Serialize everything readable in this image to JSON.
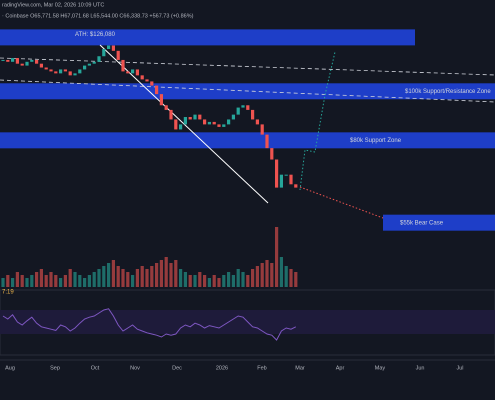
{
  "header": {
    "source": "radingView.com, Mar 02, 2026 10:09 UTC",
    "ohlc": "· Coinbase  O65,771.58 H67,071.68 L65,544.00 C66,338.73 +567.73 (+0.86%)"
  },
  "rsi_timer": "7:19",
  "chart_data": {
    "type": "candlestick",
    "log": true,
    "ylim": [
      52000,
      155000
    ],
    "annotations": [
      {
        "text": "ATH: $126,080",
        "value": 126080
      },
      {
        "text": "$100k Support/Resistance Zone",
        "value": 100000
      },
      {
        "text": "$80k Support Zone",
        "value": 80000
      },
      {
        "text": "$55k Bear Case",
        "value": 55000
      }
    ],
    "categories": [
      "Aug",
      "Sep",
      "Oct",
      "Nov",
      "Dec",
      "2026",
      "Feb",
      "Mar",
      "Apr",
      "May",
      "Jun",
      "Jul"
    ],
    "colors": {
      "up": "#26a69a",
      "down": "#ef5350"
    },
    "close": [
      118000,
      117000,
      119000,
      116000,
      115000,
      117000,
      118000,
      116000,
      114000,
      113000,
      112000,
      111000,
      113000,
      112000,
      110000,
      111000,
      113000,
      115000,
      116000,
      117000,
      120000,
      124000,
      126000,
      123000,
      118000,
      112000,
      111000,
      113000,
      110000,
      108000,
      107000,
      105000,
      101000,
      96000,
      94000,
      90000,
      86000,
      88000,
      91000,
      90000,
      92000,
      90000,
      88000,
      89000,
      88000,
      87000,
      88000,
      90000,
      92000,
      95000,
      96000,
      94000,
      90000,
      88000,
      84000,
      79000,
      75000,
      66000,
      70000,
      70000,
      67000,
      66000
    ],
    "volume": [
      3,
      4,
      3,
      5,
      4,
      3,
      4,
      5,
      6,
      4,
      5,
      4,
      3,
      4,
      6,
      5,
      4,
      3,
      4,
      5,
      6,
      7,
      8,
      9,
      7,
      6,
      5,
      4,
      6,
      7,
      6,
      7,
      8,
      9,
      10,
      8,
      9,
      6,
      5,
      4,
      4,
      5,
      4,
      3,
      4,
      3,
      4,
      5,
      4,
      6,
      5,
      4,
      6,
      7,
      8,
      9,
      8,
      20,
      10,
      7,
      6,
      5
    ],
    "rsi": [
      60,
      55,
      62,
      50,
      45,
      52,
      58,
      48,
      42,
      40,
      38,
      36,
      45,
      42,
      35,
      40,
      48,
      55,
      58,
      60,
      65,
      70,
      72,
      60,
      45,
      35,
      40,
      45,
      38,
      35,
      32,
      30,
      28,
      25,
      30,
      28,
      30,
      40,
      45,
      42,
      48,
      45,
      40,
      44,
      42,
      40,
      45,
      50,
      55,
      60,
      58,
      50,
      42,
      40,
      35,
      30,
      28,
      20,
      35,
      40,
      38,
      42
    ],
    "rsi_lim": [
      0,
      100
    ]
  }
}
